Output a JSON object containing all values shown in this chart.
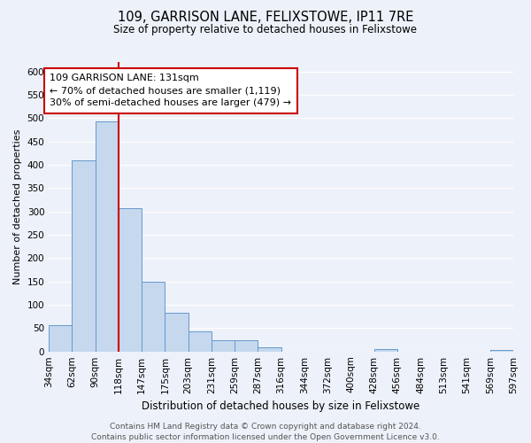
{
  "title": "109, GARRISON LANE, FELIXSTOWE, IP11 7RE",
  "subtitle": "Size of property relative to detached houses in Felixstowe",
  "xlabel": "Distribution of detached houses by size in Felixstowe",
  "ylabel": "Number of detached properties",
  "bar_values": [
    57,
    410,
    493,
    307,
    150,
    82,
    43,
    25,
    25,
    8,
    0,
    0,
    0,
    0,
    5,
    0,
    0,
    0,
    0,
    4
  ],
  "bin_labels": [
    "34sqm",
    "62sqm",
    "90sqm",
    "118sqm",
    "147sqm",
    "175sqm",
    "203sqm",
    "231sqm",
    "259sqm",
    "287sqm",
    "316sqm",
    "344sqm",
    "372sqm",
    "400sqm",
    "428sqm",
    "456sqm",
    "484sqm",
    "513sqm",
    "541sqm",
    "569sqm",
    "597sqm"
  ],
  "bar_color": "#c5d8ee",
  "bar_edge_color": "#6699cc",
  "vline_x": 3,
  "vline_color": "#cc0000",
  "annotation_text": "109 GARRISON LANE: 131sqm\n← 70% of detached houses are smaller (1,119)\n30% of semi-detached houses are larger (479) →",
  "annotation_box_color": "#ffffff",
  "annotation_box_edge": "#cc0000",
  "ylim": [
    0,
    620
  ],
  "yticks": [
    0,
    50,
    100,
    150,
    200,
    250,
    300,
    350,
    400,
    450,
    500,
    550,
    600
  ],
  "background_color": "#edf1f9",
  "grid_color": "#ffffff",
  "footer_text": "Contains HM Land Registry data © Crown copyright and database right 2024.\nContains public sector information licensed under the Open Government Licence v3.0.",
  "title_fontsize": 10.5,
  "subtitle_fontsize": 8.5,
  "xlabel_fontsize": 8.5,
  "ylabel_fontsize": 8,
  "tick_fontsize": 7.5,
  "annotation_fontsize": 8,
  "footer_fontsize": 6.5
}
